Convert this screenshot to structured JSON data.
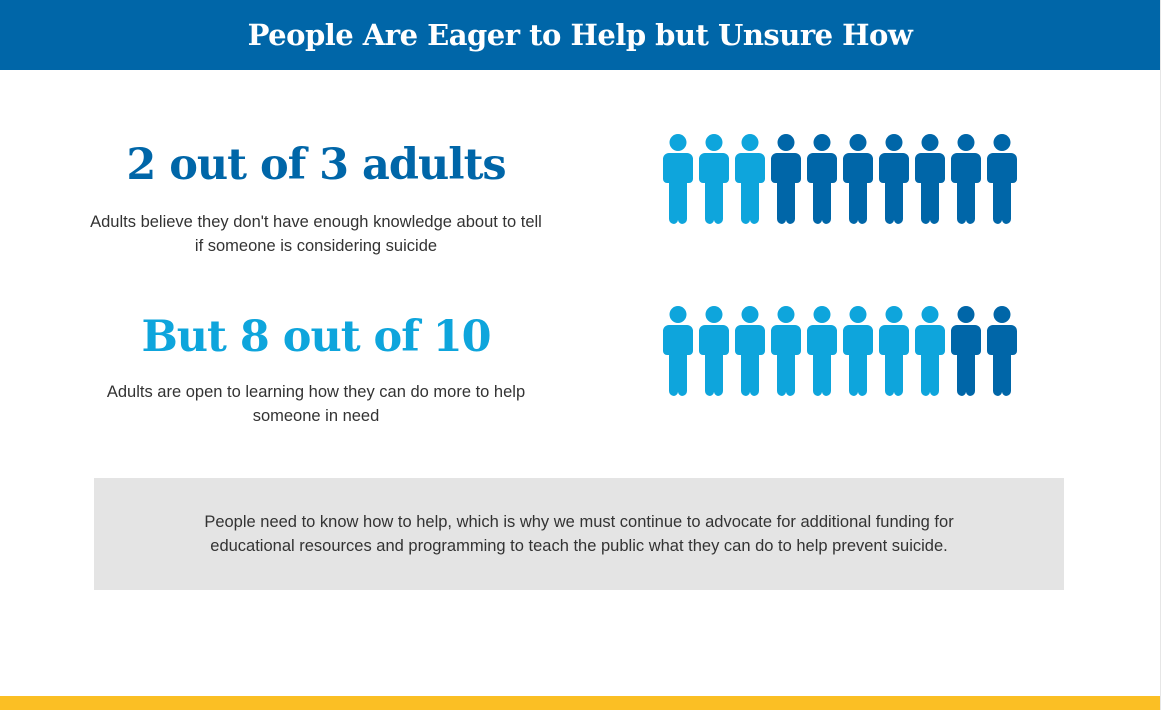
{
  "header": {
    "title": "People Are Eager to Help but Unsure How"
  },
  "stats": [
    {
      "headline": "2 out of 3 adults",
      "description": "Adults believe they don't have enough knowledge about to tell if someone is considering suicide",
      "headline_color": "#0066a8"
    },
    {
      "headline": "But 8 out of 10",
      "description": "Adults are open to learning how they can do more to help someone in need",
      "headline_color": "#0ea5dc"
    }
  ],
  "callout": {
    "text": "People need to know how to help, which is why we must continue to advocate for additional funding for educational resources and programming to teach the public what they can do to help prevent suicide."
  },
  "colors": {
    "header_bg": "#0066a8",
    "dark_blue": "#0066a8",
    "light_blue": "#0ea5dc",
    "accent_yellow": "#fbbf24",
    "callout_bg": "#e4e4e4"
  },
  "chart_data": [
    {
      "type": "pictogram",
      "icon": "person-icon",
      "total": 10,
      "highlighted_color": "#0ea5dc",
      "highlighted_count": 3,
      "other_color": "#0066a8",
      "other_count": 7,
      "order": "highlighted-first"
    },
    {
      "type": "pictogram",
      "icon": "person-icon",
      "total": 10,
      "highlighted_color": "#0ea5dc",
      "highlighted_count": 8,
      "other_color": "#0066a8",
      "other_count": 2,
      "order": "highlighted-first"
    }
  ]
}
